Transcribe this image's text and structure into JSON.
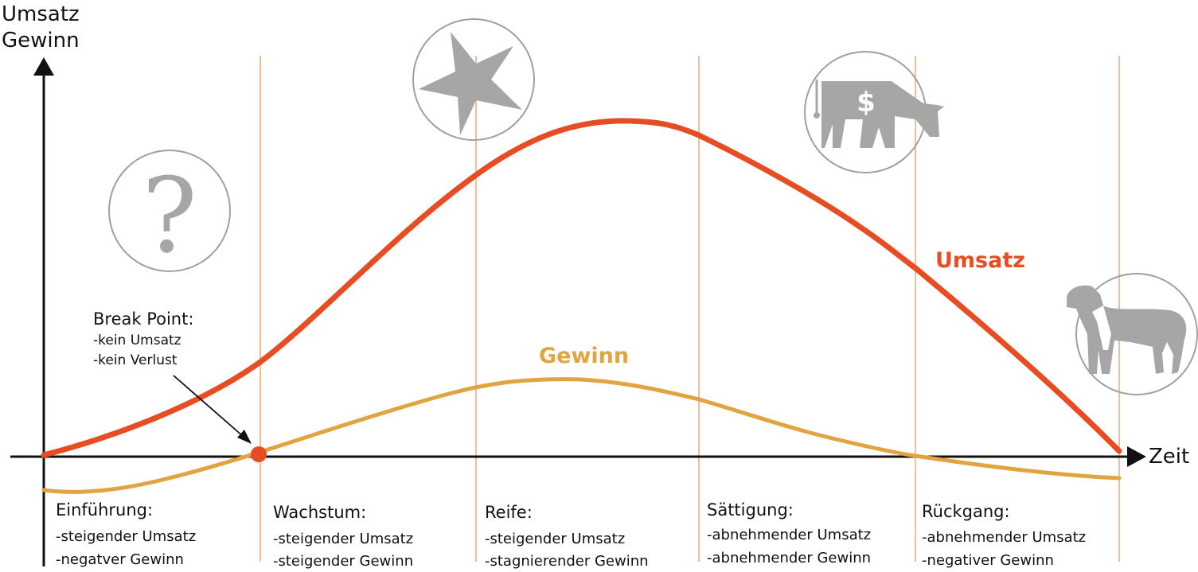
{
  "colors": {
    "umsatz": "#e84c22",
    "gewinn": "#e2a440",
    "divider": "#f0a070",
    "axis": "#111111",
    "icon_gray": "#a6a6a6",
    "circle_stroke": "#a0a0a0"
  },
  "axes": {
    "y_label_1": "Umsatz",
    "y_label_2": "Gewinn",
    "x_label": "Zeit"
  },
  "series": [
    {
      "key": "umsatz",
      "name": "Umsatz"
    },
    {
      "key": "gewinn",
      "name": "Gewinn"
    }
  ],
  "break_point": {
    "title": "Break Point:",
    "line1": "-kein Umsatz",
    "line2": "-kein Verlust"
  },
  "phases": [
    {
      "title": "Einführung:",
      "line1": "-steigender Umsatz",
      "line2": "-negatver Gewinn",
      "icon": "question-mark-icon"
    },
    {
      "title": "Wachstum:",
      "line1": "-steigender Umsatz",
      "line2": "-steigender Gewinn",
      "icon": "star-icon"
    },
    {
      "title": "Reife:",
      "line1": "-steigender Umsatz",
      "line2": "-stagnierender Gewinn",
      "icon": ""
    },
    {
      "title": "Sättigung:",
      "line1": "-abnehmender Umsatz",
      "line2": "-abnehmender Gewinn",
      "icon": "cash-cow-icon"
    },
    {
      "title": "Rückgang:",
      "line1": "-abnehmender Umsatz",
      "line2": "-negativer Gewinn",
      "icon": "dog-icon"
    }
  ]
}
